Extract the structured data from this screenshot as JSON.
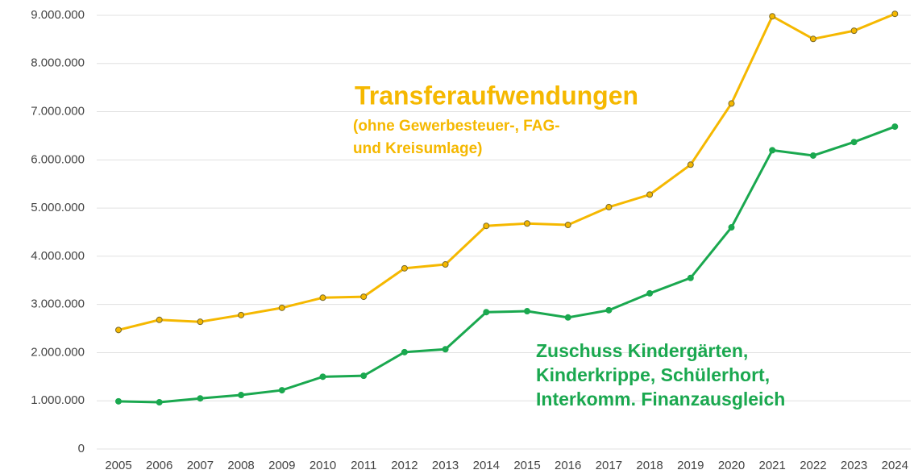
{
  "chart_data": {
    "type": "line",
    "categories": [
      "2005",
      "2006",
      "2007",
      "2008",
      "2009",
      "2010",
      "2011",
      "2012",
      "2013",
      "2014",
      "2015",
      "2016",
      "2017",
      "2018",
      "2019",
      "2020",
      "2021",
      "2022",
      "2023",
      "2024"
    ],
    "series": [
      {
        "name": [
          "Transferaufwendungen"
        ],
        "note": [
          "(ohne Gewerbesteuer-, FAG-",
          "und Kreisumlage)"
        ],
        "color": "#f5b800",
        "values": [
          2470000,
          2680000,
          2640000,
          2780000,
          2930000,
          3140000,
          3160000,
          3750000,
          3830000,
          4630000,
          4680000,
          4650000,
          5020000,
          5280000,
          5900000,
          7170000,
          8980000,
          8510000,
          8680000,
          9030000
        ]
      },
      {
        "name": [
          "Zuschuss Kindergärten,",
          "Kinderkrippe,  Schülerhort,",
          "Interkomm. Finanzausgleich"
        ],
        "color": "#1aa84f",
        "values": [
          990000,
          970000,
          1050000,
          1120000,
          1220000,
          1500000,
          1520000,
          2010000,
          2070000,
          2840000,
          2860000,
          2730000,
          2880000,
          3230000,
          3550000,
          4600000,
          6200000,
          6090000,
          6370000,
          6690000
        ]
      }
    ],
    "ylim": [
      0,
      9000000
    ],
    "yticks": [
      0,
      {
        "value": 1000000,
        "label": "1.000.000"
      },
      {
        "value": 2000000,
        "label": "2.000.000"
      },
      {
        "value": 3000000,
        "label": "3.000.000"
      },
      {
        "value": 4000000,
        "label": "4.000.000"
      },
      {
        "value": 5000000,
        "label": "5.000.000"
      },
      {
        "value": 6000000,
        "label": "6.000.000"
      },
      {
        "value": 7000000,
        "label": "7.000.000"
      },
      {
        "value": 8000000,
        "label": "8.000.000"
      },
      {
        "value": 9000000,
        "label": "9.000.000"
      }
    ],
    "grid": true
  }
}
